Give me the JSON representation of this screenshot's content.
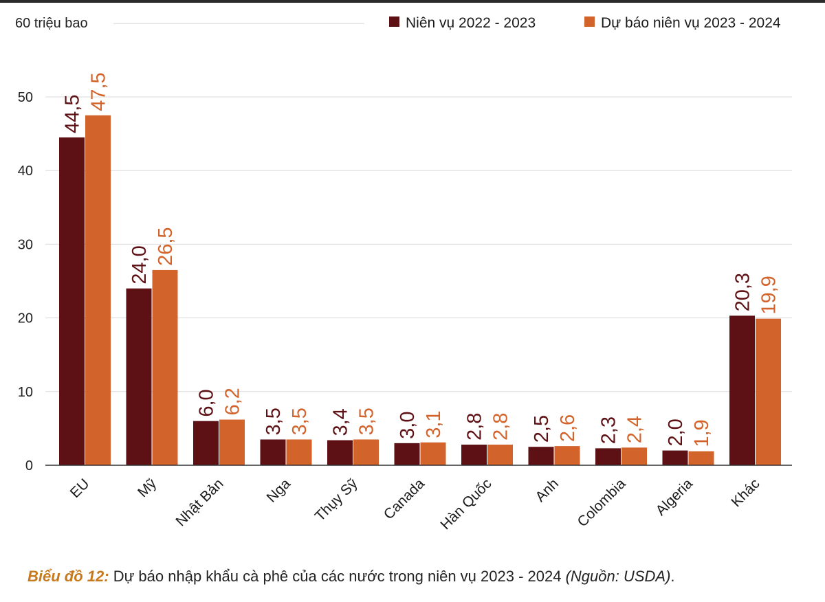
{
  "chart_data": {
    "type": "bar",
    "unit_label": "60 triệu bao",
    "categories": [
      "EU",
      "Mỹ",
      "Nhật Bản",
      "Nga",
      "Thụy Sỹ",
      "Canada",
      "Hàn Quốc",
      "Anh",
      "Colombia",
      "Algeria",
      "Khác"
    ],
    "series": [
      {
        "name": "Niên vụ 2022 - 2023",
        "color": "#5e1114",
        "values": [
          44.5,
          24.0,
          6.0,
          3.5,
          3.4,
          3.0,
          2.8,
          2.5,
          2.3,
          2.0,
          20.3
        ],
        "labels": [
          "44,5",
          "24,0",
          "6,0",
          "3,5",
          "3,4",
          "3,0",
          "2,8",
          "2,5",
          "2,3",
          "2,0",
          "20,3"
        ]
      },
      {
        "name": "Dự báo niên vụ 2023 - 2024",
        "color": "#d2632b",
        "values": [
          47.5,
          26.5,
          6.2,
          3.5,
          3.5,
          3.1,
          2.8,
          2.6,
          2.4,
          1.9,
          19.9
        ],
        "labels": [
          "47,5",
          "26,5",
          "6,2",
          "3,5",
          "3,5",
          "3,1",
          "2,8",
          "2,6",
          "2,4",
          "1,9",
          "19,9"
        ]
      }
    ],
    "yticks": [
      "0",
      "10",
      "20",
      "30",
      "40",
      "50"
    ],
    "ylim": [
      0,
      60
    ],
    "grid": true,
    "legend_position": "top-right",
    "label_colors": [
      "#5e1114",
      "#d2632b"
    ]
  },
  "caption": {
    "label": "Biểu đồ 12:",
    "text": " Dự báo nhập khẩu cà phê của các nước trong niên vụ 2023 - 2024 ",
    "source": "(Nguồn: USDA)",
    "end": "."
  }
}
